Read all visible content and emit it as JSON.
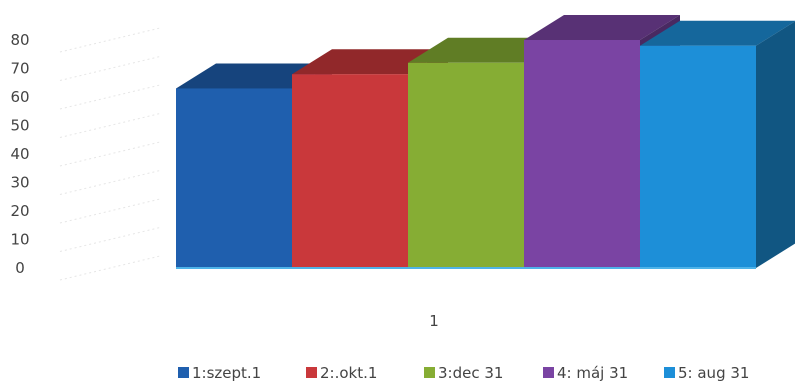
{
  "chart_data": {
    "type": "bar",
    "categories": [
      "1"
    ],
    "series": [
      {
        "name": "1:szept.1",
        "values": [
          63
        ],
        "color": "#1f5fae"
      },
      {
        "name": "2:.okt.1",
        "values": [
          68
        ],
        "color": "#c9383b"
      },
      {
        "name": "3:dec 31",
        "values": [
          72
        ],
        "color": "#86ad34"
      },
      {
        "name": "4: máj 31",
        "values": [
          80
        ],
        "color": "#7a44a3"
      },
      {
        "name": "5: aug 31",
        "values": [
          78
        ],
        "color": "#1d8fd8"
      }
    ],
    "ylim": [
      0,
      80
    ],
    "yticks": [
      "0",
      "10",
      "20",
      "30",
      "40",
      "50",
      "60",
      "70",
      "80"
    ],
    "xlabel": "",
    "ylabel": "",
    "title": "",
    "legend_position": "bottom",
    "three_d": true
  }
}
